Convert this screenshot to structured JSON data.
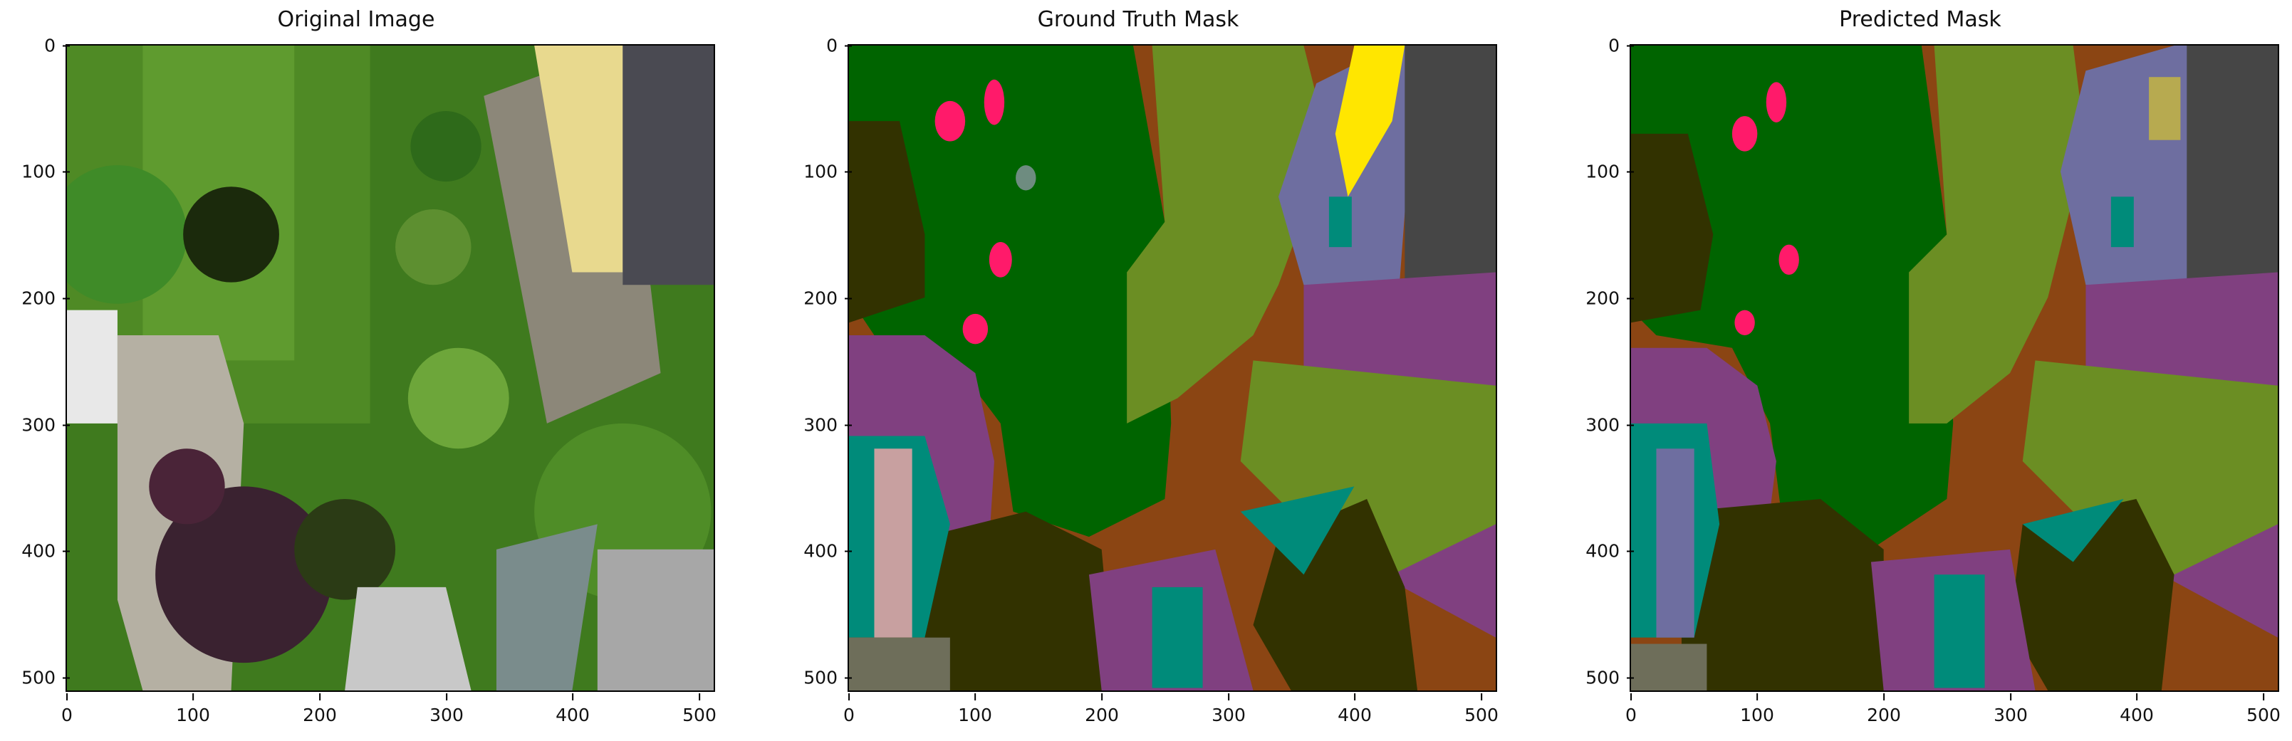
{
  "panels": [
    {
      "id": "original",
      "title": "Original Image"
    },
    {
      "id": "gt",
      "title": "Ground Truth Mask"
    },
    {
      "id": "pred",
      "title": "Predicted Mask"
    }
  ],
  "axes": {
    "xticks": [
      "0",
      "100",
      "200",
      "300",
      "400",
      "500"
    ],
    "yticks": [
      "0",
      "100",
      "200",
      "300",
      "400",
      "500"
    ],
    "range": [
      0,
      511
    ]
  },
  "colors": {
    "grass": "#006400",
    "vegetation": "#6b8e23",
    "dirt": "#8b4513",
    "paved": "#804080",
    "pavement_blue": "#6e6ea0",
    "roof": "#464646",
    "tree": "#323200",
    "teal": "#008b7a",
    "person": "#ff1a6a",
    "gravel": "#6e6e5a",
    "yellow": "#ffe600",
    "pink": "#c8a0a0"
  }
}
